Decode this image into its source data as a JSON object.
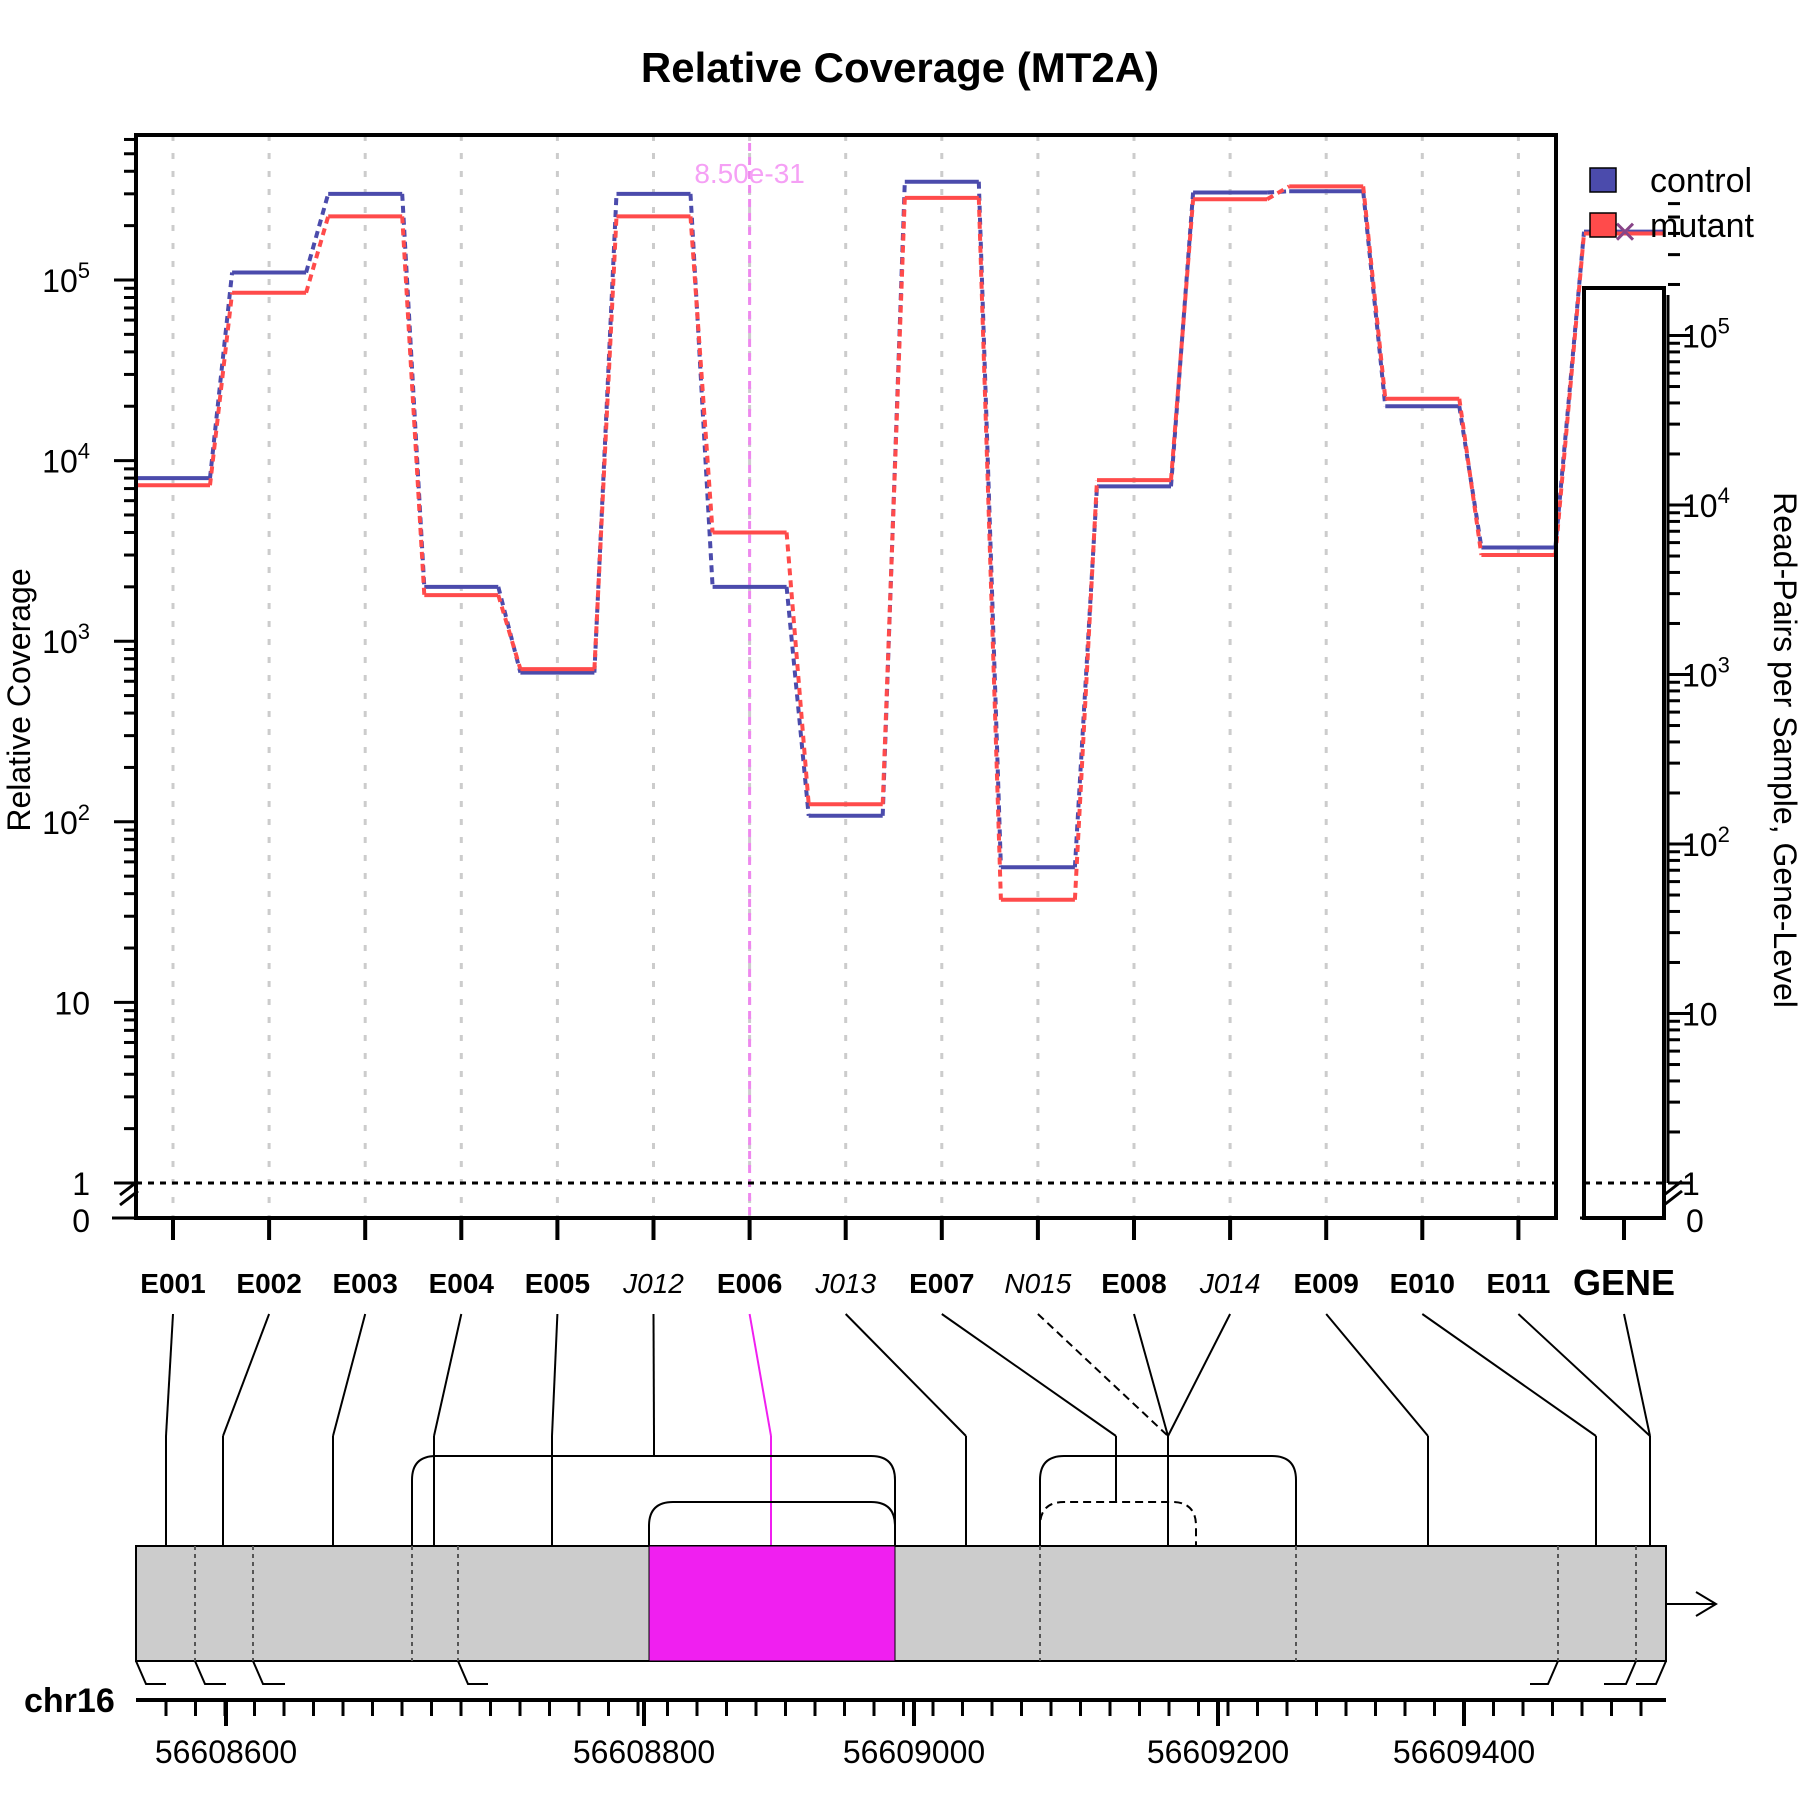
{
  "chart_data": {
    "type": "line",
    "title": "Relative Coverage (MT2A)",
    "ylabel": "Relative Coverage",
    "y2label": "Read-Pairs per Sample, Gene-Level",
    "yscale": "log",
    "ylim": [
      0,
      600000
    ],
    "yticks": [
      {
        "base": "1",
        "exp": ""
      },
      {
        "base": "10",
        "exp": ""
      },
      {
        "base": "10",
        "exp": "2"
      },
      {
        "base": "10",
        "exp": "3"
      },
      {
        "base": "10",
        "exp": "4"
      },
      {
        "base": "10",
        "exp": "5"
      }
    ],
    "zero_label": "0",
    "reference_line": 1,
    "features": [
      {
        "label": "E001",
        "type": "exon",
        "control": 8000,
        "mutant": 7300
      },
      {
        "label": "E002",
        "type": "exon",
        "control": 110000,
        "mutant": 85000
      },
      {
        "label": "E003",
        "type": "exon",
        "control": 300000,
        "mutant": 225000
      },
      {
        "label": "E004",
        "type": "exon",
        "control": 2000,
        "mutant": 1800
      },
      {
        "label": "E005",
        "type": "exon",
        "control": 670,
        "mutant": 700
      },
      {
        "label": "J012",
        "type": "junction",
        "control": 300000,
        "mutant": 225000
      },
      {
        "label": "E006",
        "type": "exon",
        "control": 2000,
        "mutant": 4000
      },
      {
        "label": "J013",
        "type": "junction",
        "control": 108,
        "mutant": 125
      },
      {
        "label": "E007",
        "type": "exon",
        "control": 350000,
        "mutant": 285000
      },
      {
        "label": "N015",
        "type": "novel-junction",
        "control": 56,
        "mutant": 37
      },
      {
        "label": "E008",
        "type": "exon",
        "control": 7200,
        "mutant": 7800
      },
      {
        "label": "J014",
        "type": "junction",
        "control": 305000,
        "mutant": 280000
      },
      {
        "label": "E009",
        "type": "exon",
        "control": 310000,
        "mutant": 330000
      },
      {
        "label": "E010",
        "type": "exon",
        "control": 20000,
        "mutant": 22000
      },
      {
        "label": "E011",
        "type": "exon",
        "control": 3300,
        "mutant": 3000
      }
    ],
    "gene": {
      "label": "GENE",
      "control": 410000,
      "mutant": 400000
    },
    "highlight": {
      "feature": "E006",
      "pvalue": "8.50e-31",
      "color": "#f01ff0"
    },
    "series": [
      {
        "name": "control",
        "color": "#4b4bac"
      },
      {
        "name": "mutant",
        "color": "#ff4b4b"
      }
    ],
    "legend_position": "top-right",
    "grid": "vertical-dashed",
    "genome": {
      "chromosome": "chr16",
      "ticks": [
        "56608600",
        "56608800",
        "56609000",
        "56609200",
        "56609400"
      ]
    }
  }
}
